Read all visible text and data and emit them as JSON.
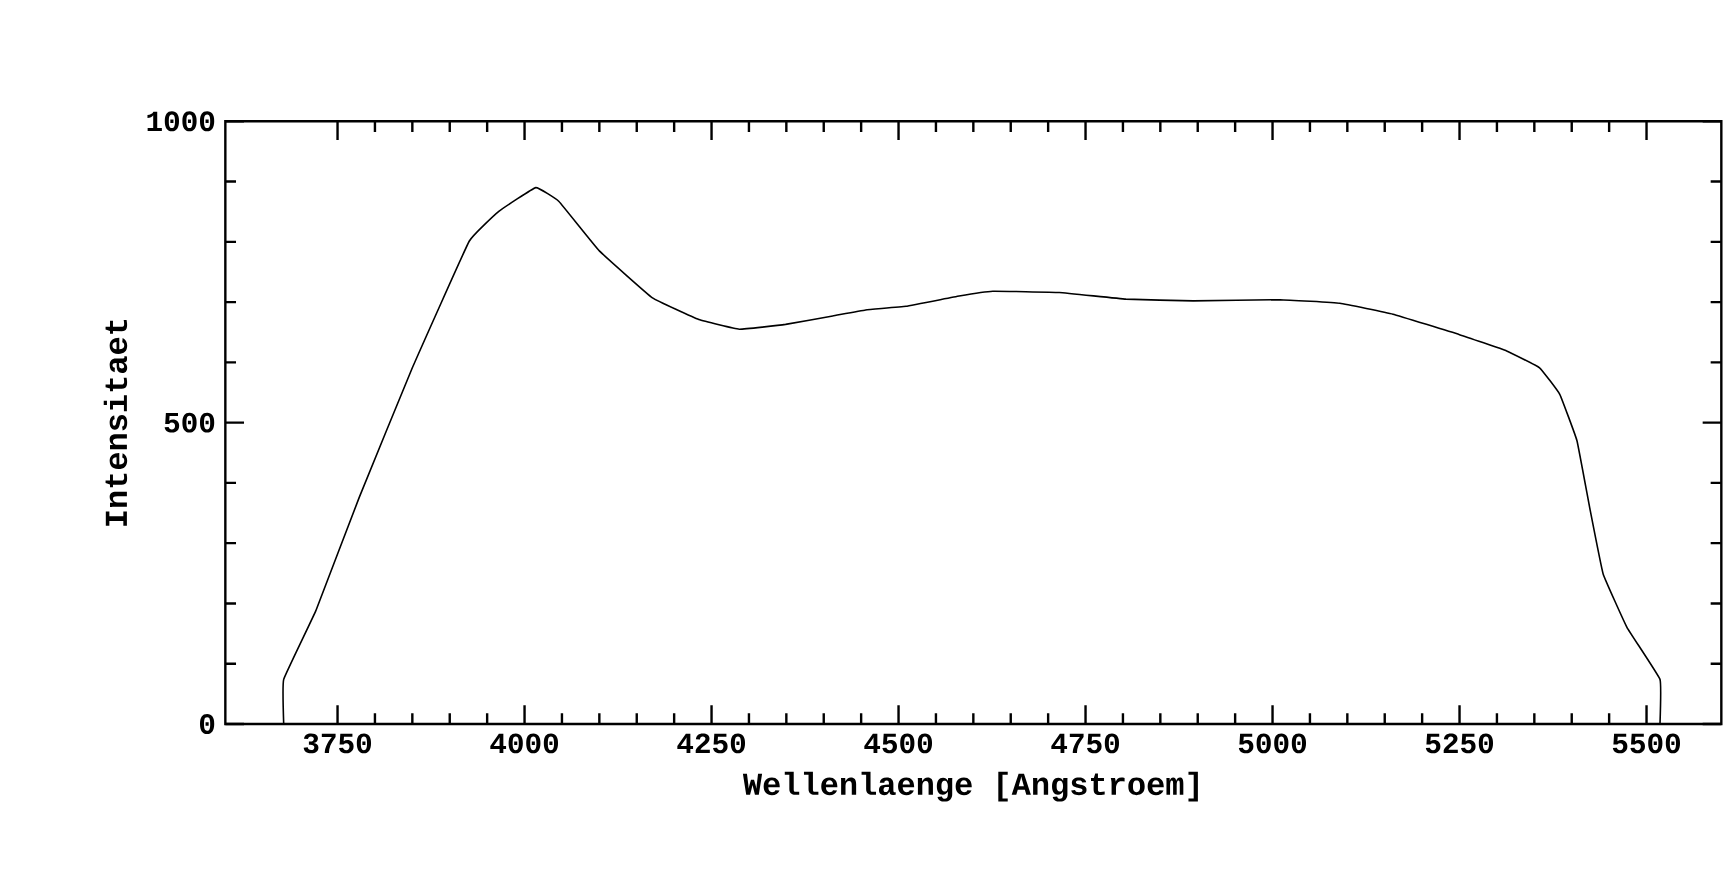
{
  "chart_data": {
    "type": "line",
    "xlabel": "Wellenlaenge [Angstroem]",
    "ylabel": "Intensitaet",
    "x": [
      3678,
      3678,
      3721,
      3779,
      3850,
      3926,
      3966,
      4015,
      4046,
      4100,
      4171,
      4233,
      4287,
      4349,
      4412,
      4456,
      4510,
      4581,
      4626,
      4715,
      4804,
      4894,
      5010,
      5090,
      5161,
      5250,
      5313,
      5357,
      5384,
      5407,
      5424,
      5442,
      5474,
      5518,
      5518
    ],
    "series": [
      {
        "color": "#000000",
        "values": [
          0,
          74,
          188,
          376,
          591,
          801,
          851,
          890,
          867,
          785,
          707,
          671,
          655,
          663,
          677,
          687,
          693,
          710,
          718,
          716,
          705,
          702,
          704,
          698,
          680,
          646,
          619,
          591,
          547,
          470,
          359,
          249,
          160,
          74,
          0
        ]
      }
    ],
    "xlim": [
      3600,
      5600
    ],
    "ylim": [
      0,
      1000
    ],
    "xticks": [
      3750,
      4000,
      4250,
      4500,
      4750,
      5000,
      5250,
      5500
    ],
    "yticks": [
      0,
      500,
      1000
    ],
    "grid": false,
    "marker": "none",
    "line_style": "solid"
  }
}
